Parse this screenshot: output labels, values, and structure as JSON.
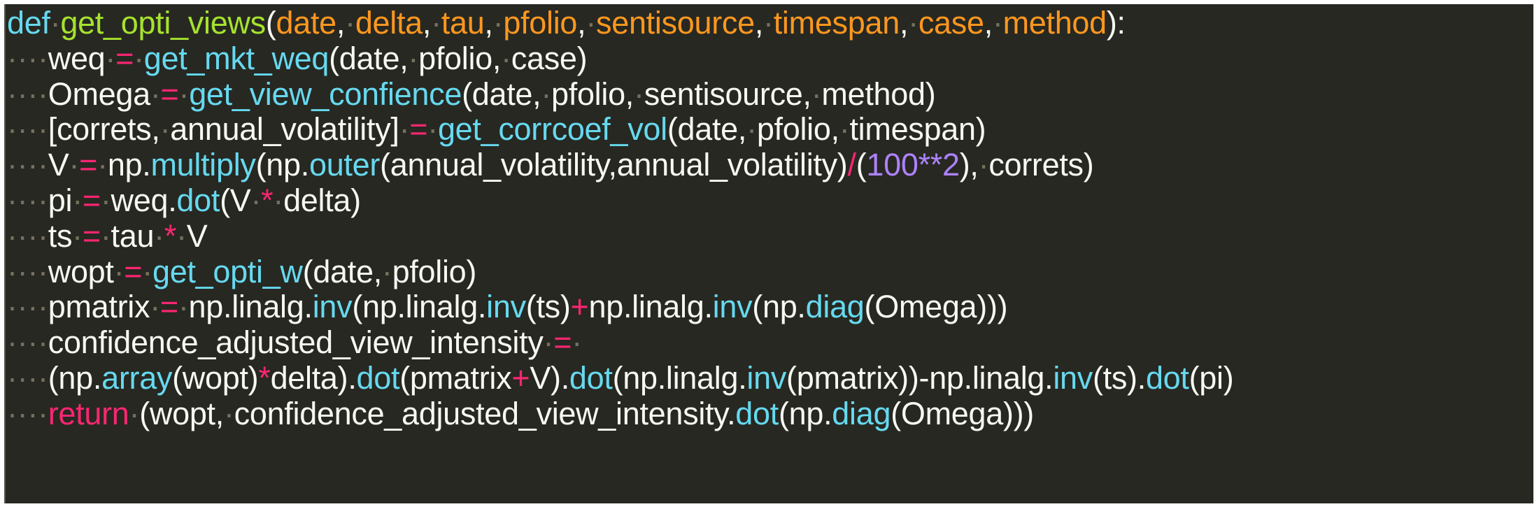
{
  "colors": {
    "background": "#272822",
    "keyword": "#66d9ef",
    "function_name": "#a6e22e",
    "parameter": "#fd971f",
    "text": "#f8f8f2",
    "operator": "#f92672",
    "call": "#66d9ef",
    "number": "#ae81ff",
    "whitespace": "#75715e"
  },
  "code": {
    "lines": [
      [
        [
          "k",
          "def"
        ],
        [
          "w",
          "·"
        ],
        [
          "f",
          "get_opti_views"
        ],
        [
          "n",
          "("
        ],
        [
          "p",
          "date"
        ],
        [
          "n",
          ","
        ],
        [
          "w",
          "·"
        ],
        [
          "p",
          "delta"
        ],
        [
          "n",
          ","
        ],
        [
          "w",
          "·"
        ],
        [
          "p",
          "tau"
        ],
        [
          "n",
          ","
        ],
        [
          "w",
          "·"
        ],
        [
          "p",
          "pfolio"
        ],
        [
          "n",
          ","
        ],
        [
          "w",
          "·"
        ],
        [
          "p",
          "sentisource"
        ],
        [
          "n",
          ","
        ],
        [
          "w",
          "·"
        ],
        [
          "p",
          "timespan"
        ],
        [
          "n",
          ","
        ],
        [
          "w",
          "·"
        ],
        [
          "p",
          "case"
        ],
        [
          "n",
          ","
        ],
        [
          "w",
          "·"
        ],
        [
          "p",
          "method"
        ],
        [
          "n",
          "):"
        ]
      ],
      [
        [
          "w",
          "····"
        ],
        [
          "n",
          "weq"
        ],
        [
          "w",
          "·"
        ],
        [
          "o",
          "="
        ],
        [
          "w",
          "·"
        ],
        [
          "c",
          "get_mkt_weq"
        ],
        [
          "n",
          "(date,"
        ],
        [
          "w",
          "·"
        ],
        [
          "n",
          "pfolio,"
        ],
        [
          "w",
          "·"
        ],
        [
          "n",
          "case)"
        ]
      ],
      [
        [
          "w",
          "····"
        ],
        [
          "n",
          "Omega"
        ],
        [
          "w",
          "·"
        ],
        [
          "o",
          "="
        ],
        [
          "w",
          "·"
        ],
        [
          "c",
          "get_view_confience"
        ],
        [
          "n",
          "(date,"
        ],
        [
          "w",
          "·"
        ],
        [
          "n",
          "pfolio,"
        ],
        [
          "w",
          "·"
        ],
        [
          "n",
          "sentisource,"
        ],
        [
          "w",
          "·"
        ],
        [
          "n",
          "method)"
        ]
      ],
      [
        [
          "w",
          "····"
        ],
        [
          "n",
          "[correts,"
        ],
        [
          "w",
          "·"
        ],
        [
          "n",
          "annual_volatility]"
        ],
        [
          "w",
          "·"
        ],
        [
          "o",
          "="
        ],
        [
          "w",
          "·"
        ],
        [
          "c",
          "get_corrcoef_vol"
        ],
        [
          "n",
          "(date,"
        ],
        [
          "w",
          "·"
        ],
        [
          "n",
          "pfolio,"
        ],
        [
          "w",
          "·"
        ],
        [
          "n",
          "timespan)"
        ]
      ],
      [
        [
          "w",
          "····"
        ],
        [
          "n",
          "V"
        ],
        [
          "w",
          "·"
        ],
        [
          "o",
          "="
        ],
        [
          "w",
          "·"
        ],
        [
          "n",
          "np."
        ],
        [
          "c",
          "multiply"
        ],
        [
          "n",
          "(np."
        ],
        [
          "c",
          "outer"
        ],
        [
          "n",
          "(annual_volatility,annual_volatility)"
        ],
        [
          "o",
          "/"
        ],
        [
          "n",
          "("
        ],
        [
          "m",
          "100**2"
        ],
        [
          "n",
          "),"
        ],
        [
          "w",
          "·"
        ],
        [
          "n",
          "correts)"
        ]
      ],
      [
        [
          "w",
          "····"
        ],
        [
          "n",
          "pi"
        ],
        [
          "w",
          "·"
        ],
        [
          "o",
          "="
        ],
        [
          "w",
          "·"
        ],
        [
          "n",
          "weq."
        ],
        [
          "c",
          "dot"
        ],
        [
          "n",
          "(V"
        ],
        [
          "w",
          "·"
        ],
        [
          "o",
          "*"
        ],
        [
          "w",
          "·"
        ],
        [
          "n",
          "delta)"
        ]
      ],
      [
        [
          "w",
          "····"
        ],
        [
          "n",
          "ts"
        ],
        [
          "w",
          "·"
        ],
        [
          "o",
          "="
        ],
        [
          "w",
          "·"
        ],
        [
          "n",
          "tau"
        ],
        [
          "w",
          "·"
        ],
        [
          "o",
          "*"
        ],
        [
          "w",
          "·"
        ],
        [
          "n",
          "V"
        ]
      ],
      [
        [
          "w",
          "····"
        ],
        [
          "n",
          "wopt"
        ],
        [
          "w",
          "·"
        ],
        [
          "o",
          "="
        ],
        [
          "w",
          "·"
        ],
        [
          "c",
          "get_opti_w"
        ],
        [
          "n",
          "(date,"
        ],
        [
          "w",
          "·"
        ],
        [
          "n",
          "pfolio)"
        ]
      ],
      [
        [
          "w",
          "····"
        ],
        [
          "n",
          "pmatrix"
        ],
        [
          "w",
          "·"
        ],
        [
          "o",
          "="
        ],
        [
          "w",
          "·"
        ],
        [
          "n",
          "np.linalg."
        ],
        [
          "c",
          "inv"
        ],
        [
          "n",
          "(np.linalg."
        ],
        [
          "c",
          "inv"
        ],
        [
          "n",
          "(ts)"
        ],
        [
          "o",
          "+"
        ],
        [
          "n",
          "np.linalg."
        ],
        [
          "c",
          "inv"
        ],
        [
          "n",
          "(np."
        ],
        [
          "c",
          "diag"
        ],
        [
          "n",
          "(Omega)))"
        ]
      ],
      [
        [
          "w",
          "····"
        ],
        [
          "n",
          "confidence_adjusted_view_intensity"
        ],
        [
          "w",
          "·"
        ],
        [
          "o",
          "="
        ],
        [
          "w",
          "·"
        ]
      ],
      [
        [
          "w",
          "····"
        ],
        [
          "n",
          "(np."
        ],
        [
          "c",
          "array"
        ],
        [
          "n",
          "(wopt)"
        ],
        [
          "o",
          "*"
        ],
        [
          "n",
          "delta)."
        ],
        [
          "c",
          "dot"
        ],
        [
          "n",
          "(pmatrix"
        ],
        [
          "o",
          "+"
        ],
        [
          "n",
          "V)."
        ],
        [
          "c",
          "dot"
        ],
        [
          "n",
          "(np.linalg."
        ],
        [
          "c",
          "inv"
        ],
        [
          "n",
          "(pmatrix))-np.linalg."
        ],
        [
          "c",
          "inv"
        ],
        [
          "n",
          "(ts)."
        ],
        [
          "c",
          "dot"
        ],
        [
          "n",
          "(pi)"
        ]
      ],
      [
        [
          "w",
          "····"
        ],
        [
          "o",
          "return"
        ],
        [
          "w",
          "·"
        ],
        [
          "n",
          "(wopt,"
        ],
        [
          "w",
          "·"
        ],
        [
          "n",
          "confidence_adjusted_view_intensity."
        ],
        [
          "c",
          "dot"
        ],
        [
          "n",
          "(np."
        ],
        [
          "c",
          "diag"
        ],
        [
          "n",
          "(Omega)))"
        ]
      ]
    ]
  }
}
